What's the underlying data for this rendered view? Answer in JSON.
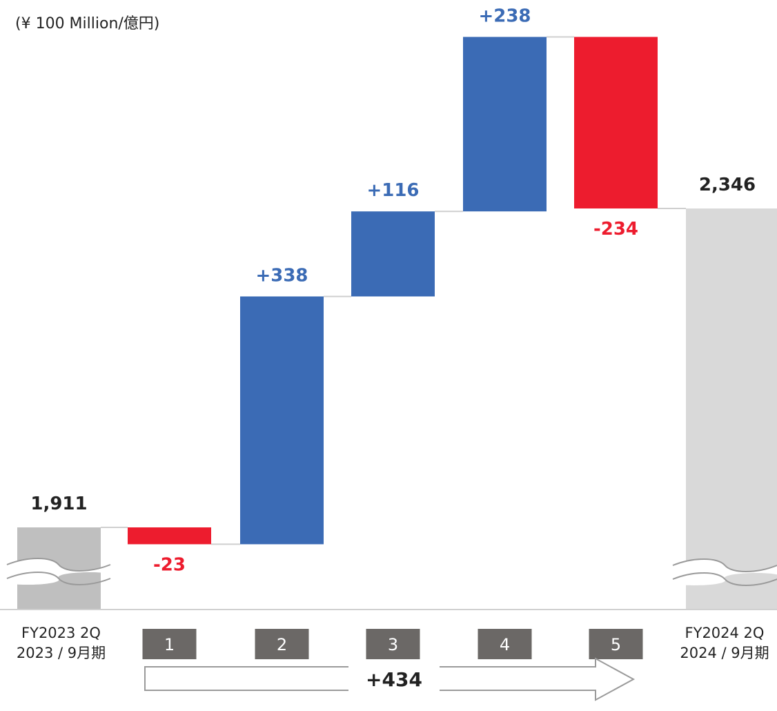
{
  "unit_label": "(¥ 100 Million/億円)",
  "colors": {
    "increase": "#3b6bb5",
    "decrease": "#ed1c2e",
    "start_total": "#bfbfbf",
    "end_total": "#d9d9d9",
    "step_box": "#6b6866",
    "label_neutral": "#222222"
  },
  "chart_data": {
    "type": "waterfall",
    "start": {
      "label_line1": "FY2023 2Q",
      "label_line2": "2023 / 9月期",
      "value": 1911,
      "value_label": "1,911"
    },
    "steps": [
      {
        "box": "1",
        "value": -23,
        "value_label": "-23"
      },
      {
        "box": "2",
        "value": 338,
        "value_label": "+338"
      },
      {
        "box": "3",
        "value": 116,
        "value_label": "+116"
      },
      {
        "box": "4",
        "value": 238,
        "value_label": "+238"
      },
      {
        "box": "5",
        "value": -234,
        "value_label": "-234"
      }
    ],
    "end": {
      "label_line1": "FY2024 2Q",
      "label_line2": "2024 / 9月期",
      "value": 2346,
      "value_label": "2,346"
    },
    "net_change": {
      "value": 434,
      "label": "+434"
    },
    "axis_break": true
  }
}
